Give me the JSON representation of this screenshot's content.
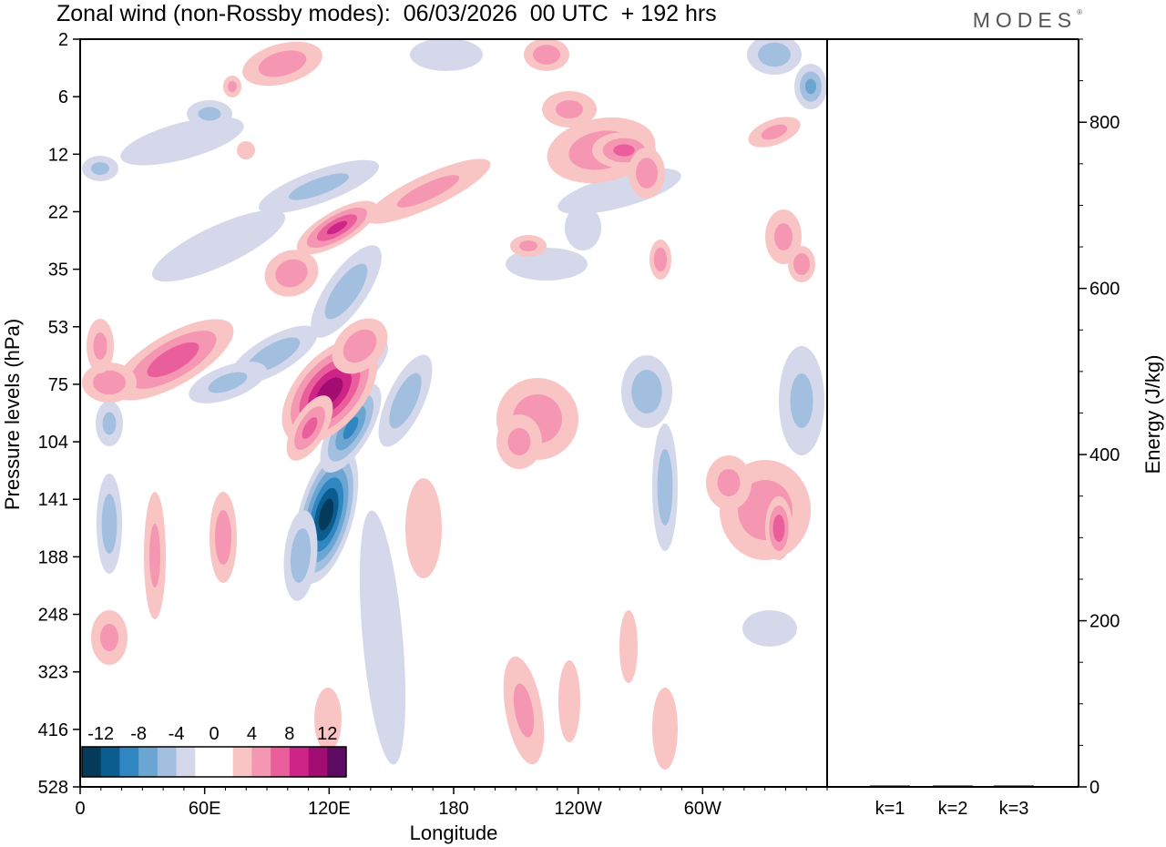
{
  "title": "Zonal wind (non-Rossby modes):  06/03/2026  00 UTC  + 192 hrs",
  "brand": "MODES",
  "brand_mark": "®",
  "chart_data": [
    {
      "type": "heatmap",
      "title": "Zonal wind (non-Rossby modes):  06/03/2026  00 UTC  + 192 hrs",
      "xlabel": "Longitude",
      "ylabel": "Pressure levels (hPa)",
      "x_ticks": [
        "0",
        "60E",
        "120E",
        "180",
        "120W",
        "60W"
      ],
      "x_tick_values": [
        0,
        60,
        120,
        180,
        240,
        300
      ],
      "xlim": [
        0,
        360
      ],
      "y_ticks": [
        "2",
        "6",
        "12",
        "22",
        "35",
        "53",
        "75",
        "104",
        "141",
        "188",
        "248",
        "323",
        "416",
        "528"
      ],
      "y_axis": "pressure levels, top 2 hPa to bottom 528 hPa",
      "colorbar": {
        "labels": [
          "-12",
          "-8",
          "-4",
          "0",
          "4",
          "8",
          "12"
        ],
        "label_values": [
          -12,
          -8,
          -4,
          0,
          4,
          8,
          12
        ],
        "colors": [
          "#053a5a",
          "#0b5d8f",
          "#2f86c1",
          "#6aa6d1",
          "#a3bfdf",
          "#d5d8ea",
          "#ffffff",
          "#ffffff",
          "#f9c4c4",
          "#f597b2",
          "#ea5f9b",
          "#cf2487",
          "#a20d72",
          "#5c0a62"
        ],
        "boundaries": [
          -14,
          -12,
          -10,
          -8,
          -6,
          -4,
          -2,
          0,
          2,
          4,
          6,
          8,
          10,
          12,
          14
        ],
        "extend": "both"
      },
      "features": [
        {
          "sign": "negative",
          "peak": -13,
          "lon": 120,
          "level": "141",
          "note": "strongest negative core"
        },
        {
          "sign": "positive",
          "peak": 11,
          "lon": 128,
          "level": "75-104",
          "note": "strongest positive core"
        },
        {
          "sign": "negative",
          "peak": -6,
          "lon": 140,
          "level": "35-75",
          "note": "tilted band"
        },
        {
          "sign": "positive",
          "peak": 8,
          "lon": 120,
          "level": "22-35",
          "note": "tilted band"
        },
        {
          "sign": "positive",
          "peak": 7,
          "lon": 50,
          "level": "53-75",
          "note": "tilted band"
        },
        {
          "sign": "positive",
          "peak": 5,
          "lon": 210,
          "level": "104",
          "note": "isolated patch"
        },
        {
          "sign": "positive",
          "peak": 5,
          "lon": 340,
          "level": "141",
          "note": "eastern patch"
        },
        {
          "sign": "positive",
          "peak": 5,
          "lon": 255,
          "level": "6-22",
          "note": "upper patch"
        }
      ]
    },
    {
      "type": "bar",
      "ylabel": "Energy (J/kg)",
      "categories": [
        "k=1",
        "k=2",
        "k=3"
      ],
      "values": [
        1,
        1,
        1
      ],
      "ylim": [
        0,
        900
      ],
      "y_ticks": [
        "0",
        "200",
        "400",
        "600",
        "800"
      ],
      "y_tick_values": [
        0,
        200,
        400,
        600,
        800
      ]
    }
  ]
}
